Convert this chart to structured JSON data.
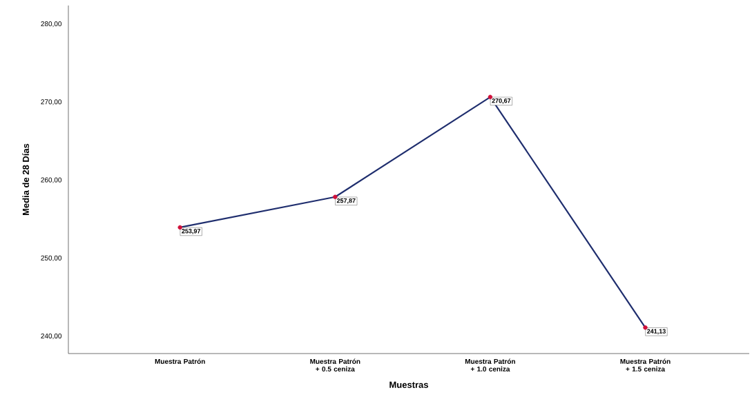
{
  "chart_data": {
    "type": "line",
    "xlabel": "Muestras",
    "ylabel": "Media de 28 Días",
    "categories": [
      "Muestra Patrón",
      "Muestra Patrón + 0.5 ceniza",
      "Muestra Patrón + 1.0 ceniza",
      "Muestra Patrón + 1.5 ceniza"
    ],
    "values": [
      253.97,
      257.87,
      270.67,
      241.13
    ],
    "value_labels": [
      "253,97",
      "257,87",
      "270,67",
      "241,13"
    ],
    "color": "#1f2e6e",
    "colors": [
      "#d0103a",
      "#d0103a",
      "#d0103a",
      "#d0103a"
    ],
    "ylim": [
      237.8,
      282.4
    ],
    "yticks": [
      {
        "value": 240,
        "label": "240,00"
      },
      {
        "value": 250,
        "label": "250,00"
      },
      {
        "value": 260,
        "label": "260,00"
      },
      {
        "value": 270,
        "label": "270,00"
      },
      {
        "value": 280,
        "label": "280,00"
      }
    ],
    "marker": "circle",
    "line_style": "solid"
  }
}
